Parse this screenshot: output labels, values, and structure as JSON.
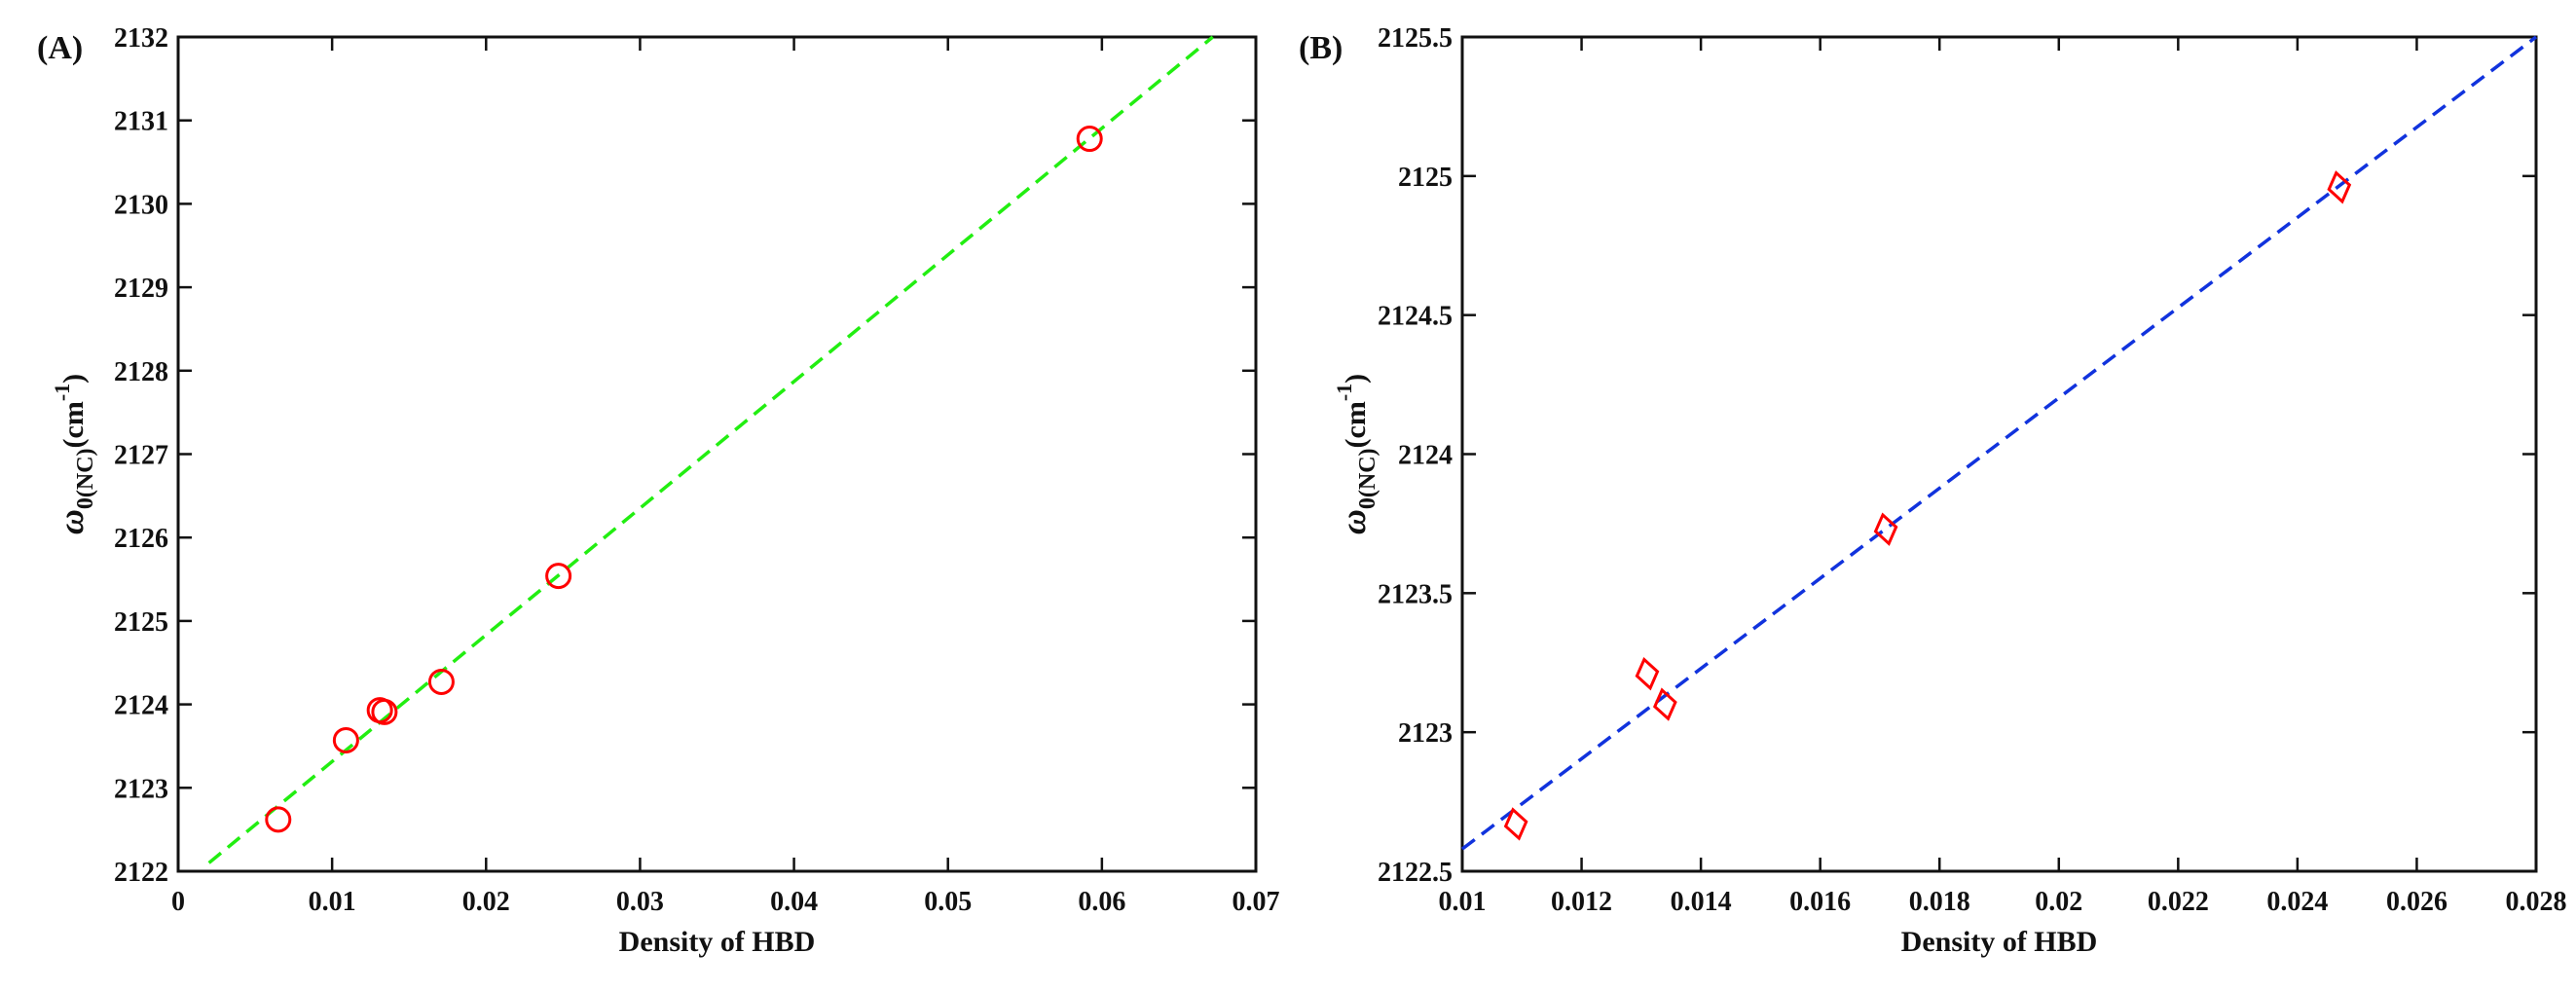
{
  "chart_data": [
    {
      "panel_label": "(A)",
      "type": "scatter",
      "xlabel": "Density of HBD",
      "ylabel_base": "ω",
      "ylabel_sub": "0(NC)",
      "ylabel_unit": "(cm",
      "ylabel_sup": "-1",
      "ylabel_close": ")",
      "xlim": [
        0,
        0.07
      ],
      "ylim": [
        2122,
        2132
      ],
      "xticks": [
        "0",
        "0.01",
        "0.02",
        "0.03",
        "0.04",
        "0.05",
        "0.06",
        "0.07"
      ],
      "xtick_values": [
        0,
        0.01,
        0.02,
        0.03,
        0.04,
        0.05,
        0.06,
        0.07
      ],
      "yticks": [
        "2122",
        "2123",
        "2124",
        "2125",
        "2126",
        "2127",
        "2128",
        "2129",
        "2130",
        "2131",
        "2132"
      ],
      "ytick_values": [
        2122,
        2123,
        2124,
        2125,
        2126,
        2127,
        2128,
        2129,
        2130,
        2131,
        2132
      ],
      "grid": false,
      "marker": "circle",
      "marker_color": "#ff0000",
      "points": [
        {
          "x": 0.0065,
          "y": 2122.62
        },
        {
          "x": 0.0109,
          "y": 2123.57
        },
        {
          "x": 0.0131,
          "y": 2123.93
        },
        {
          "x": 0.0134,
          "y": 2123.91
        },
        {
          "x": 0.0171,
          "y": 2124.27
        },
        {
          "x": 0.0247,
          "y": 2125.54
        },
        {
          "x": 0.0592,
          "y": 2130.78
        }
      ],
      "fit_line": {
        "color": "#22ee11",
        "style": "dashed",
        "x": [
          0.002,
          0.0672
        ],
        "y": [
          2122.1,
          2132.0
        ]
      }
    },
    {
      "panel_label": "(B)",
      "type": "scatter",
      "xlabel": "Density of HBD",
      "ylabel_base": "ω",
      "ylabel_sub": "0(NC)",
      "ylabel_unit": "(cm",
      "ylabel_sup": "-1",
      "ylabel_close": ")",
      "xlim": [
        0.01,
        0.028
      ],
      "ylim": [
        2122.5,
        2125.5
      ],
      "xticks": [
        "0.01",
        "0.012",
        "0.014",
        "0.016",
        "0.018",
        "0.02",
        "0.022",
        "0.024",
        "0.026",
        "0.028"
      ],
      "xtick_values": [
        0.01,
        0.012,
        0.014,
        0.016,
        0.018,
        0.02,
        0.022,
        0.024,
        0.026,
        0.028
      ],
      "yticks": [
        "2122.5",
        "2123",
        "2123.5",
        "2124",
        "2124.5",
        "2125",
        "2125.5"
      ],
      "ytick_values": [
        2122.5,
        2123,
        2123.5,
        2124,
        2124.5,
        2125,
        2125.5
      ],
      "grid": false,
      "marker": "diamond",
      "marker_color": "#ff0000",
      "points": [
        {
          "x": 0.0109,
          "y": 2122.67
        },
        {
          "x": 0.0131,
          "y": 2123.21
        },
        {
          "x": 0.0134,
          "y": 2123.1
        },
        {
          "x": 0.0171,
          "y": 2123.73
        },
        {
          "x": 0.0247,
          "y": 2124.96
        }
      ],
      "fit_line": {
        "color": "#1133dd",
        "style": "dashed",
        "x": [
          0.01,
          0.028
        ],
        "y": [
          2122.58,
          2125.5
        ]
      }
    }
  ]
}
